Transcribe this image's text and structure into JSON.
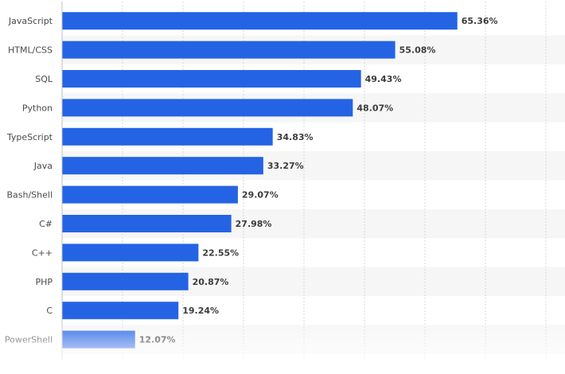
{
  "chart_data": {
    "type": "bar",
    "orientation": "horizontal",
    "categories": [
      "JavaScript",
      "HTML/CSS",
      "SQL",
      "Python",
      "TypeScript",
      "Java",
      "Bash/Shell",
      "C#",
      "C++",
      "PHP",
      "C",
      "PowerShell"
    ],
    "values": [
      65.36,
      55.08,
      49.43,
      48.07,
      34.83,
      33.27,
      29.07,
      27.98,
      22.55,
      20.87,
      19.24,
      12.07
    ],
    "value_labels": [
      "65.36%",
      "55.08%",
      "49.43%",
      "48.07%",
      "34.83%",
      "33.27%",
      "29.07%",
      "27.98%",
      "22.55%",
      "20.87%",
      "19.24%",
      "12.07%"
    ],
    "xlim": [
      0,
      80
    ],
    "grid": true,
    "title": "",
    "xlabel": "",
    "ylabel": ""
  },
  "colors": {
    "bar": "#2563e5",
    "band": "#f6f6f6",
    "grid": "#d8d8d8",
    "axis": "#bfbfbf"
  }
}
